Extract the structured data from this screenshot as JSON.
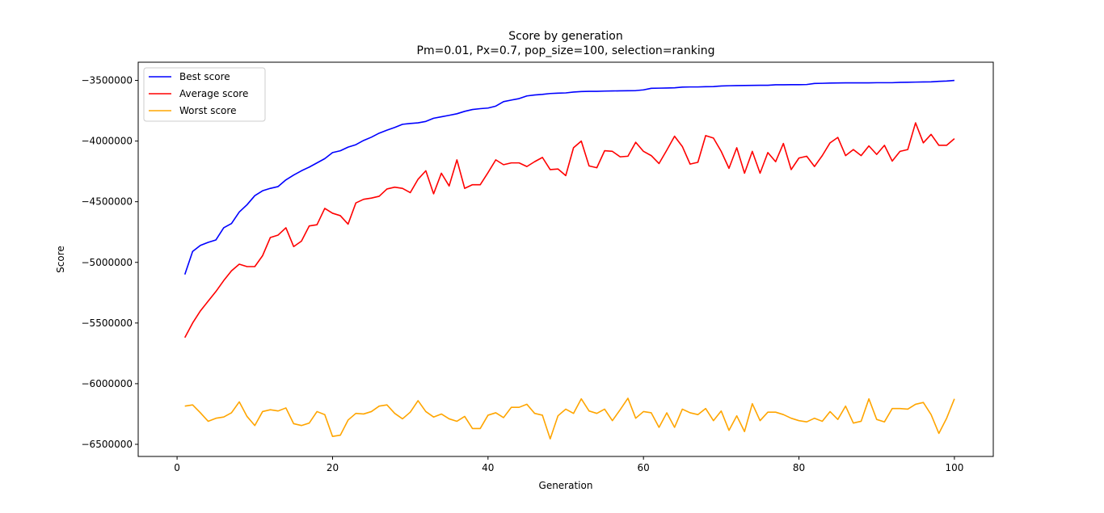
{
  "chart_data": {
    "type": "line",
    "title": "Score by generation",
    "subtitle": "Pm=0.01, Px=0.7, pop_size=100, selection=ranking",
    "xlabel": "Generation",
    "ylabel": "Score",
    "xlim": [
      -5,
      105
    ],
    "ylim": [
      -6600000,
      -3350000
    ],
    "xticks": [
      0,
      20,
      40,
      60,
      80,
      100
    ],
    "yticks": [
      -3500000,
      -4000000,
      -4500000,
      -5000000,
      -5500000,
      -6000000,
      -6500000
    ],
    "grid": false,
    "legend_position": "top-left",
    "series": [
      {
        "name": "Best score",
        "color": "#0000ff",
        "x": [
          1,
          2,
          3,
          4,
          5,
          6,
          7,
          8,
          9,
          10,
          11,
          12,
          13,
          14,
          15,
          16,
          17,
          18,
          19,
          20,
          21,
          22,
          23,
          24,
          25,
          26,
          27,
          28,
          29,
          30,
          31,
          32,
          33,
          34,
          35,
          36,
          37,
          38,
          39,
          40,
          41,
          42,
          43,
          44,
          45,
          46,
          47,
          48,
          49,
          50,
          51,
          52,
          53,
          54,
          55,
          56,
          57,
          58,
          59,
          60,
          61,
          62,
          63,
          64,
          65,
          66,
          67,
          68,
          69,
          70,
          71,
          72,
          73,
          74,
          75,
          76,
          77,
          78,
          79,
          80,
          81,
          82,
          83,
          84,
          85,
          86,
          87,
          88,
          89,
          90,
          91,
          92,
          93,
          94,
          95,
          96,
          97,
          98,
          99,
          100
        ],
        "values": [
          -5100000,
          -4910000,
          -4860000,
          -4835000,
          -4815000,
          -4715000,
          -4680000,
          -4585000,
          -4525000,
          -4450000,
          -4410000,
          -4390000,
          -4375000,
          -4320000,
          -4280000,
          -4245000,
          -4215000,
          -4180000,
          -4145000,
          -4095000,
          -4080000,
          -4050000,
          -4030000,
          -3995000,
          -3968000,
          -3935000,
          -3910000,
          -3888000,
          -3862000,
          -3855000,
          -3850000,
          -3838000,
          -3812000,
          -3800000,
          -3788000,
          -3775000,
          -3755000,
          -3740000,
          -3733000,
          -3728000,
          -3712000,
          -3675000,
          -3662000,
          -3650000,
          -3628000,
          -3620000,
          -3615000,
          -3608000,
          -3605000,
          -3603000,
          -3596000,
          -3592000,
          -3590000,
          -3590000,
          -3588000,
          -3587000,
          -3586000,
          -3585000,
          -3584000,
          -3578000,
          -3565000,
          -3564000,
          -3563000,
          -3561000,
          -3555000,
          -3554000,
          -3554000,
          -3552000,
          -3551000,
          -3546000,
          -3544000,
          -3543000,
          -3542000,
          -3541000,
          -3540000,
          -3540000,
          -3536000,
          -3536000,
          -3535000,
          -3535000,
          -3534000,
          -3525000,
          -3524000,
          -3522000,
          -3521000,
          -3520000,
          -3520000,
          -3520000,
          -3520000,
          -3519000,
          -3519000,
          -3519000,
          -3516000,
          -3515000,
          -3514000,
          -3513000,
          -3512000,
          -3508000,
          -3505000,
          -3500000
        ]
      },
      {
        "name": "Average score",
        "color": "#ff0000",
        "x": [
          1,
          2,
          3,
          4,
          5,
          6,
          7,
          8,
          9,
          10,
          11,
          12,
          13,
          14,
          15,
          16,
          17,
          18,
          19,
          20,
          21,
          22,
          23,
          24,
          25,
          26,
          27,
          28,
          29,
          30,
          31,
          32,
          33,
          34,
          35,
          36,
          37,
          38,
          39,
          40,
          41,
          42,
          43,
          44,
          45,
          46,
          47,
          48,
          49,
          50,
          51,
          52,
          53,
          54,
          55,
          56,
          57,
          58,
          59,
          60,
          61,
          62,
          63,
          64,
          65,
          66,
          67,
          68,
          69,
          70,
          71,
          72,
          73,
          74,
          75,
          76,
          77,
          78,
          79,
          80,
          81,
          82,
          83,
          84,
          85,
          86,
          87,
          88,
          89,
          90,
          91,
          92,
          93,
          94,
          95,
          96,
          97,
          98,
          99,
          100
        ],
        "values": [
          -5620000,
          -5500000,
          -5400000,
          -5320000,
          -5240000,
          -5150000,
          -5070000,
          -5015000,
          -5035000,
          -5035000,
          -4945000,
          -4795000,
          -4775000,
          -4715000,
          -4870000,
          -4825000,
          -4700000,
          -4690000,
          -4555000,
          -4595000,
          -4615000,
          -4685000,
          -4510000,
          -4480000,
          -4470000,
          -4455000,
          -4395000,
          -4380000,
          -4390000,
          -4425000,
          -4315000,
          -4245000,
          -4435000,
          -4265000,
          -4370000,
          -4155000,
          -4390000,
          -4360000,
          -4360000,
          -4260000,
          -4155000,
          -4195000,
          -4180000,
          -4180000,
          -4210000,
          -4170000,
          -4135000,
          -4235000,
          -4230000,
          -4285000,
          -4055000,
          -4000000,
          -4205000,
          -4220000,
          -4080000,
          -4085000,
          -4130000,
          -4125000,
          -4010000,
          -4085000,
          -4120000,
          -4185000,
          -4075000,
          -3960000,
          -4045000,
          -4190000,
          -4175000,
          -3955000,
          -3975000,
          -4085000,
          -4225000,
          -4055000,
          -4265000,
          -4085000,
          -4265000,
          -4095000,
          -4170000,
          -4020000,
          -4235000,
          -4140000,
          -4125000,
          -4210000,
          -4120000,
          -4015000,
          -3970000,
          -4120000,
          -4070000,
          -4120000,
          -4040000,
          -4110000,
          -4035000,
          -4165000,
          -4085000,
          -4070000,
          -3850000,
          -4015000,
          -3945000,
          -4035000,
          -4035000,
          -3980000
        ]
      },
      {
        "name": "Worst score",
        "color": "#ffa500",
        "x": [
          1,
          2,
          3,
          4,
          5,
          6,
          7,
          8,
          9,
          10,
          11,
          12,
          13,
          14,
          15,
          16,
          17,
          18,
          19,
          20,
          21,
          22,
          23,
          24,
          25,
          26,
          27,
          28,
          29,
          30,
          31,
          32,
          33,
          34,
          35,
          36,
          37,
          38,
          39,
          40,
          41,
          42,
          43,
          44,
          45,
          46,
          47,
          48,
          49,
          50,
          51,
          52,
          53,
          54,
          55,
          56,
          57,
          58,
          59,
          60,
          61,
          62,
          63,
          64,
          65,
          66,
          67,
          68,
          69,
          70,
          71,
          72,
          73,
          74,
          75,
          76,
          77,
          78,
          79,
          80,
          81,
          82,
          83,
          84,
          85,
          86,
          87,
          88,
          89,
          90,
          91,
          92,
          93,
          94,
          95,
          96,
          97,
          98,
          99,
          100
        ],
        "values": [
          -6185000,
          -6175000,
          -6240000,
          -6310000,
          -6285000,
          -6275000,
          -6240000,
          -6150000,
          -6270000,
          -6345000,
          -6230000,
          -6215000,
          -6225000,
          -6200000,
          -6330000,
          -6345000,
          -6325000,
          -6230000,
          -6255000,
          -6435000,
          -6425000,
          -6300000,
          -6245000,
          -6250000,
          -6230000,
          -6185000,
          -6175000,
          -6245000,
          -6290000,
          -6235000,
          -6140000,
          -6230000,
          -6275000,
          -6250000,
          -6290000,
          -6310000,
          -6270000,
          -6370000,
          -6370000,
          -6260000,
          -6240000,
          -6280000,
          -6195000,
          -6195000,
          -6170000,
          -6245000,
          -6260000,
          -6455000,
          -6265000,
          -6210000,
          -6245000,
          -6125000,
          -6225000,
          -6245000,
          -6210000,
          -6305000,
          -6215000,
          -6120000,
          -6285000,
          -6230000,
          -6240000,
          -6360000,
          -6240000,
          -6360000,
          -6210000,
          -6240000,
          -6255000,
          -6205000,
          -6305000,
          -6225000,
          -6385000,
          -6265000,
          -6395000,
          -6165000,
          -6305000,
          -6235000,
          -6235000,
          -6255000,
          -6285000,
          -6305000,
          -6315000,
          -6285000,
          -6310000,
          -6230000,
          -6295000,
          -6185000,
          -6325000,
          -6310000,
          -6125000,
          -6295000,
          -6315000,
          -6205000,
          -6205000,
          -6210000,
          -6170000,
          -6155000,
          -6255000,
          -6410000,
          -6285000,
          -6125000
        ]
      }
    ]
  }
}
